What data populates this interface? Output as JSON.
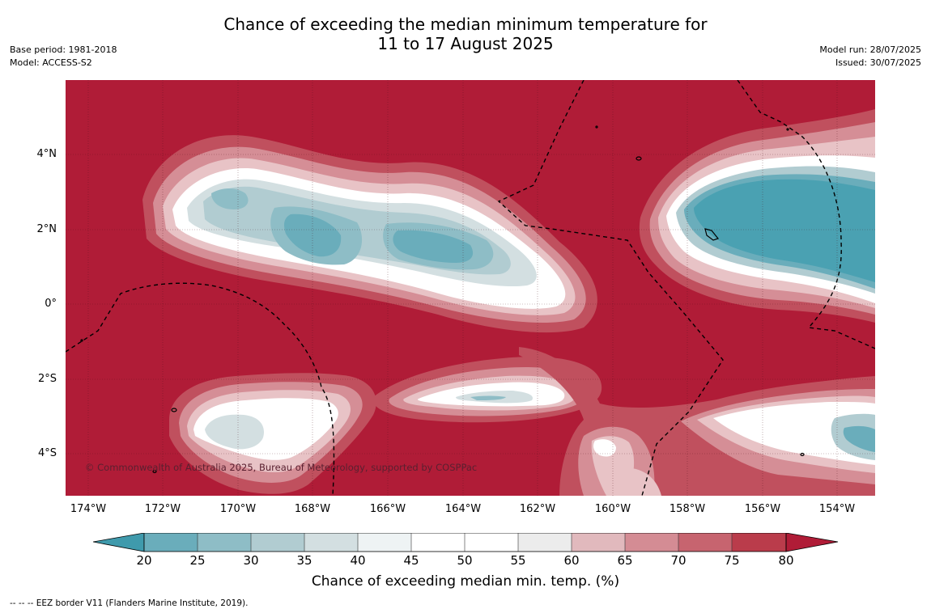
{
  "title": {
    "line1": "Chance of exceeding the median minimum temperature for",
    "line2": "11 to 17 August 2025"
  },
  "meta_left": {
    "base_period": "Base period: 1981-2018",
    "model": "Model: ACCESS-S2"
  },
  "meta_right": {
    "model_run": "Model run: 28/07/2025",
    "issued": "Issued: 30/07/2025"
  },
  "map": {
    "copyright": "© Commonwealth of Australia 2025, Bureau of Meteorology, supported by COSPPac",
    "lat_labels": [
      "4°N",
      "2°N",
      "0°",
      "2°S",
      "4°S"
    ],
    "lon_labels": [
      "174°W",
      "172°W",
      "170°W",
      "168°W",
      "166°W",
      "164°W",
      "162°W",
      "160°W",
      "158°W",
      "156°W",
      "154°W"
    ],
    "background_color": "#b01c37",
    "eez_line_style": "dashed"
  },
  "colorbar": {
    "title": "Chance of exceeding median min. temp. (%)",
    "tick_labels": [
      "20",
      "25",
      "30",
      "35",
      "40",
      "45",
      "50",
      "55",
      "60",
      "65",
      "70",
      "75",
      "80"
    ],
    "colors": [
      "#3f9aac",
      "#6aadbb",
      "#8ebdc6",
      "#b1ccd1",
      "#d3dfe1",
      "#eef3f4",
      "#ffffff",
      "#ffffff",
      "#ececec",
      "#e1b9bd",
      "#d48c94",
      "#c7646f",
      "#ba3c4b",
      "#b01c37"
    ]
  },
  "footnote": "--  --  -- EEZ border V11 (Flanders Marine Institute, 2019)."
}
